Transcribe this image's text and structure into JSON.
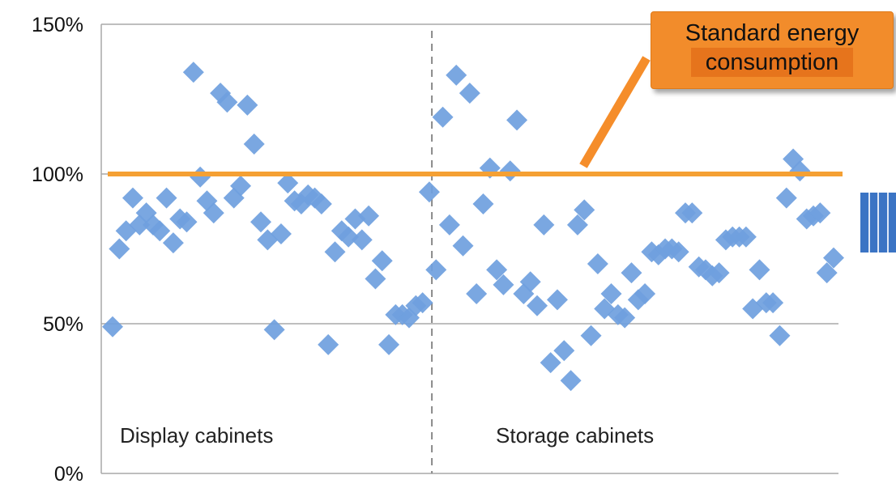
{
  "chart_data": {
    "type": "scatter",
    "ylim": [
      0,
      150
    ],
    "y_ticks": [
      "0%",
      "50%",
      "100%",
      "150%"
    ],
    "grid": true,
    "divider_index": 48,
    "regions": [
      {
        "label": "Display cabinets"
      },
      {
        "label": "Storage cabinets"
      }
    ],
    "reference_line": {
      "value": 100
    },
    "annotation": {
      "line1": "Standard energy",
      "line2": "consumption"
    },
    "marker_color": "#6fa0de",
    "line_color": "#f5a033",
    "y_values": [
      49,
      75,
      81,
      92,
      83,
      87,
      83,
      81,
      92,
      77,
      85,
      84,
      134,
      99,
      91,
      87,
      127,
      124,
      92,
      96,
      123,
      110,
      84,
      78,
      48,
      80,
      97,
      91,
      90,
      93,
      92,
      90,
      43,
      74,
      81,
      79,
      85,
      78,
      86,
      65,
      71,
      43,
      53,
      53,
      52,
      56,
      57,
      94,
      68,
      119,
      83,
      133,
      76,
      127,
      60,
      90,
      102,
      68,
      63,
      101,
      118,
      60,
      64,
      56,
      83,
      37,
      58,
      41,
      31,
      83,
      88,
      46,
      70,
      55,
      60,
      53,
      52,
      67,
      58,
      60,
      74,
      73,
      75,
      75,
      74,
      87,
      87,
      69,
      68,
      66,
      67,
      78,
      79,
      79,
      79,
      55,
      68,
      57,
      57,
      46,
      92,
      105,
      101,
      85,
      86,
      87,
      67,
      72
    ]
  }
}
